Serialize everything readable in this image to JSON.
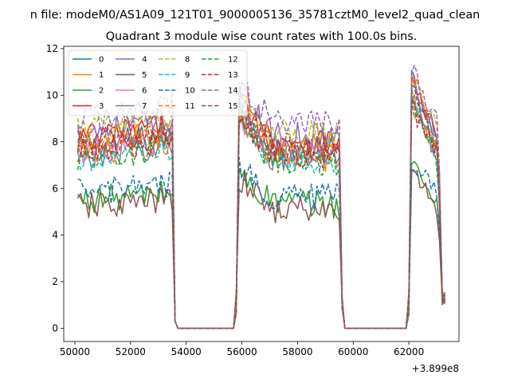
{
  "chart_data": {
    "type": "line",
    "suptitle": "n file: modeM0/AS1A09_121T01_9000005136_35781cztM0_level2_quad_clean",
    "title": "Quadrant 3 module wise count rates with 100.0s bins.",
    "xlabel": "",
    "ylabel": "",
    "offset_text": "+3.899e8",
    "xlim": [
      49600,
      63800
    ],
    "ylim": [
      -0.57,
      12.1
    ],
    "x_ticks": [
      50000,
      52000,
      54000,
      56000,
      58000,
      60000,
      62000
    ],
    "y_ticks": [
      0,
      2,
      4,
      6,
      8,
      10,
      12
    ],
    "grid": false,
    "legend_position": "top-left",
    "legend_columns": 4,
    "x_range": [
      50100,
      63300
    ],
    "bin_seconds": 100,
    "segments": [
      {
        "start": 50100,
        "end": 53600
      },
      {
        "start": 55800,
        "end": 59600
      },
      {
        "start": 62000,
        "end": 63300
      }
    ],
    "series": [
      {
        "name": "0",
        "color": "#1f77b4",
        "linestyle": "solid",
        "level": 7.8,
        "peak": 11.0
      },
      {
        "name": "1",
        "color": "#ff7f0e",
        "linestyle": "solid",
        "level": 7.5,
        "peak": 10.2
      },
      {
        "name": "2",
        "color": "#2ca02c",
        "linestyle": "solid",
        "level": 5.5,
        "peak": 7.2
      },
      {
        "name": "3",
        "color": "#d62728",
        "linestyle": "solid",
        "level": 8.2,
        "peak": 10.8
      },
      {
        "name": "4",
        "color": "#9467bd",
        "linestyle": "solid",
        "level": 8.4,
        "peak": 11.2
      },
      {
        "name": "5",
        "color": "#8c564b",
        "linestyle": "solid",
        "level": 5.2,
        "peak": 7.0
      },
      {
        "name": "6",
        "color": "#e377c2",
        "linestyle": "solid",
        "level": 7.6,
        "peak": 10.0
      },
      {
        "name": "7",
        "color": "#7f7f7f",
        "linestyle": "solid",
        "level": 7.4,
        "peak": 10.4
      },
      {
        "name": "8",
        "color": "#bcbd22",
        "linestyle": "dashed",
        "level": 8.5,
        "peak": 11.0
      },
      {
        "name": "9",
        "color": "#17becf",
        "linestyle": "dashed",
        "level": 7.2,
        "peak": 10.5
      },
      {
        "name": "10",
        "color": "#1f77b4",
        "linestyle": "dashed",
        "level": 5.8,
        "peak": 7.4
      },
      {
        "name": "11",
        "color": "#ff7f0e",
        "linestyle": "dashed",
        "level": 8.0,
        "peak": 11.5
      },
      {
        "name": "12",
        "color": "#2ca02c",
        "linestyle": "dashed",
        "level": 7.3,
        "peak": 10.0
      },
      {
        "name": "13",
        "color": "#d62728",
        "linestyle": "dashed",
        "level": 7.6,
        "peak": 9.6
      },
      {
        "name": "14",
        "color": "#9467bd",
        "linestyle": "dashed",
        "level": 9.0,
        "peak": 11.4
      },
      {
        "name": "15",
        "color": "#8c564b",
        "linestyle": "dashed",
        "level": 7.9,
        "peak": 10.6
      }
    ]
  }
}
